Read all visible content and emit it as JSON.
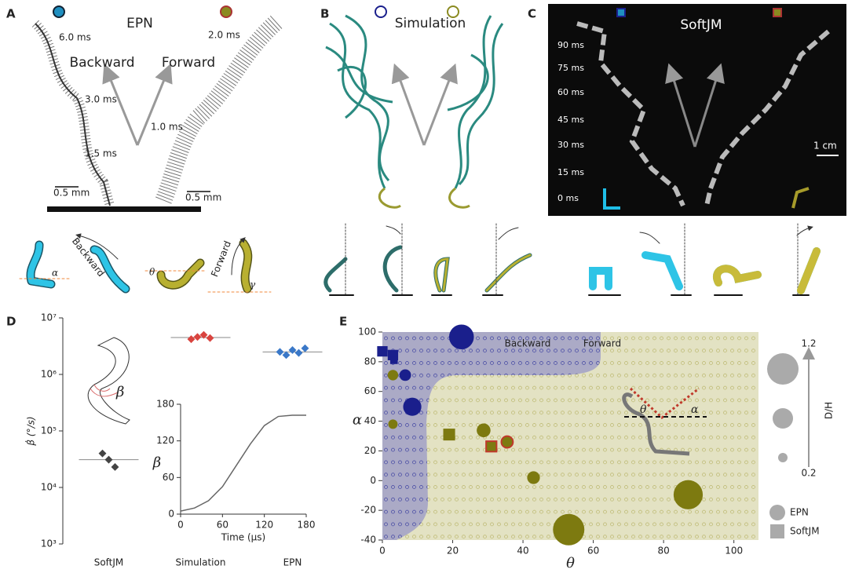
{
  "panels": {
    "A": {
      "label": "A",
      "title": "EPN",
      "backward": "Backward",
      "forward": "Forward",
      "times_left": [
        "6.0 ms",
        "3.0 ms",
        "1.5 ms"
      ],
      "times_right": [
        "2.0 ms",
        "1.0 ms"
      ],
      "scale_left": "0.5 mm",
      "scale_right": "0.5 mm",
      "angles": [
        "α",
        "θ",
        "γ"
      ],
      "sub_backward": "Backward",
      "sub_forward": "Forward"
    },
    "B": {
      "label": "B",
      "title": "Simulation"
    },
    "C": {
      "label": "C",
      "title": "SoftJM",
      "times": [
        "90 ms",
        "75 ms",
        "60 ms",
        "45 ms",
        "30 ms",
        "15 ms",
        "0 ms"
      ],
      "scale": "1 cm"
    },
    "D": {
      "label": "D",
      "inset_label": "β"
    },
    "E": {
      "label": "E",
      "angles": [
        "θ",
        "α"
      ]
    }
  },
  "chart_data": [
    {
      "type": "strip",
      "ylabel": "β̇ (°/s)",
      "log_y": true,
      "categories": [
        "SoftJM",
        "Simulation",
        "EPN"
      ],
      "values": [
        [
          40000,
          31000,
          23000
        ],
        [
          4200000,
          4600000,
          5000000,
          4400000
        ],
        [
          2500000,
          2200000,
          2700000,
          2400000,
          2900000
        ]
      ],
      "means": [
        31000,
        4500000,
        2500000
      ],
      "colors": [
        "#444444",
        "#d9443f",
        "#3a78c8"
      ],
      "ylim": [
        1000,
        10000000
      ],
      "yticks": [
        {
          "value": 1000,
          "label": "10³"
        },
        {
          "value": 10000,
          "label": "10⁴"
        },
        {
          "value": 100000,
          "label": "10⁵"
        },
        {
          "value": 1000000,
          "label": "10⁶"
        },
        {
          "value": 10000000,
          "label": "10⁷"
        }
      ]
    },
    {
      "type": "line",
      "xlabel": "Time (μs)",
      "ylabel": "β",
      "color": "#666666",
      "x": [
        0,
        20,
        40,
        60,
        80,
        100,
        120,
        140,
        160,
        180
      ],
      "values": [
        5,
        10,
        22,
        45,
        80,
        115,
        145,
        160,
        162,
        162
      ],
      "xlim": [
        0,
        180
      ],
      "ylim": [
        0,
        180
      ],
      "xticks": [
        0,
        60,
        120,
        180
      ],
      "yticks": [
        0,
        60,
        120,
        180
      ]
    },
    {
      "type": "scatter",
      "xlabel": "θ",
      "ylabel": "α",
      "region_labels": [
        "Backward",
        "Forward"
      ],
      "xlim": [
        0,
        107
      ],
      "ylim": [
        -40,
        100
      ],
      "xticks": [
        0,
        20,
        40,
        60,
        80,
        100
      ],
      "yticks": [
        -40,
        -20,
        0,
        20,
        40,
        60,
        80,
        100
      ],
      "legend_color": "#aaaaaa",
      "series": [
        {
          "name": "EPN",
          "marker": "circle",
          "x": [
            22.5,
            8.5,
            6.5,
            53,
            87,
            28.8,
            43,
            3,
            3,
            35.5
          ],
          "values": [
            96.7,
            49.7,
            71,
            -33,
            -9.5,
            33.8,
            2,
            71,
            38,
            26
          ],
          "sizes": [
            0.9,
            0.6,
            0.3,
            1.2,
            1.1,
            0.4,
            0.35,
            0.25,
            0.2,
            0.3
          ],
          "colors": [
            "#1a1f8c",
            "#1a1f8c",
            "#1a1f8c",
            "#7d7a10",
            "#7d7a10",
            "#7d7a10",
            "#7d7a10",
            "#7d7a10",
            "#7d7a10",
            "#7d7a10"
          ],
          "edges": [
            null,
            null,
            null,
            null,
            null,
            null,
            null,
            null,
            null,
            "#c0392b"
          ]
        },
        {
          "name": "SoftJM",
          "marker": "square",
          "x": [
            0,
            3,
            3.3,
            19,
            31
          ],
          "values": [
            87,
            84.5,
            81,
            31,
            23
          ],
          "sizes": [
            0.5,
            0.5,
            0.3,
            0.6,
            0.5
          ],
          "colors": [
            "#1a1f8c",
            "#1a1f8c",
            "#1a1f8c",
            "#7d7a10",
            "#7d7a10"
          ],
          "edges": [
            null,
            null,
            null,
            null,
            "#c0392b"
          ]
        }
      ],
      "size_legend": {
        "title": "D/H",
        "values": [
          1.2,
          0.2
        ]
      }
    }
  ]
}
